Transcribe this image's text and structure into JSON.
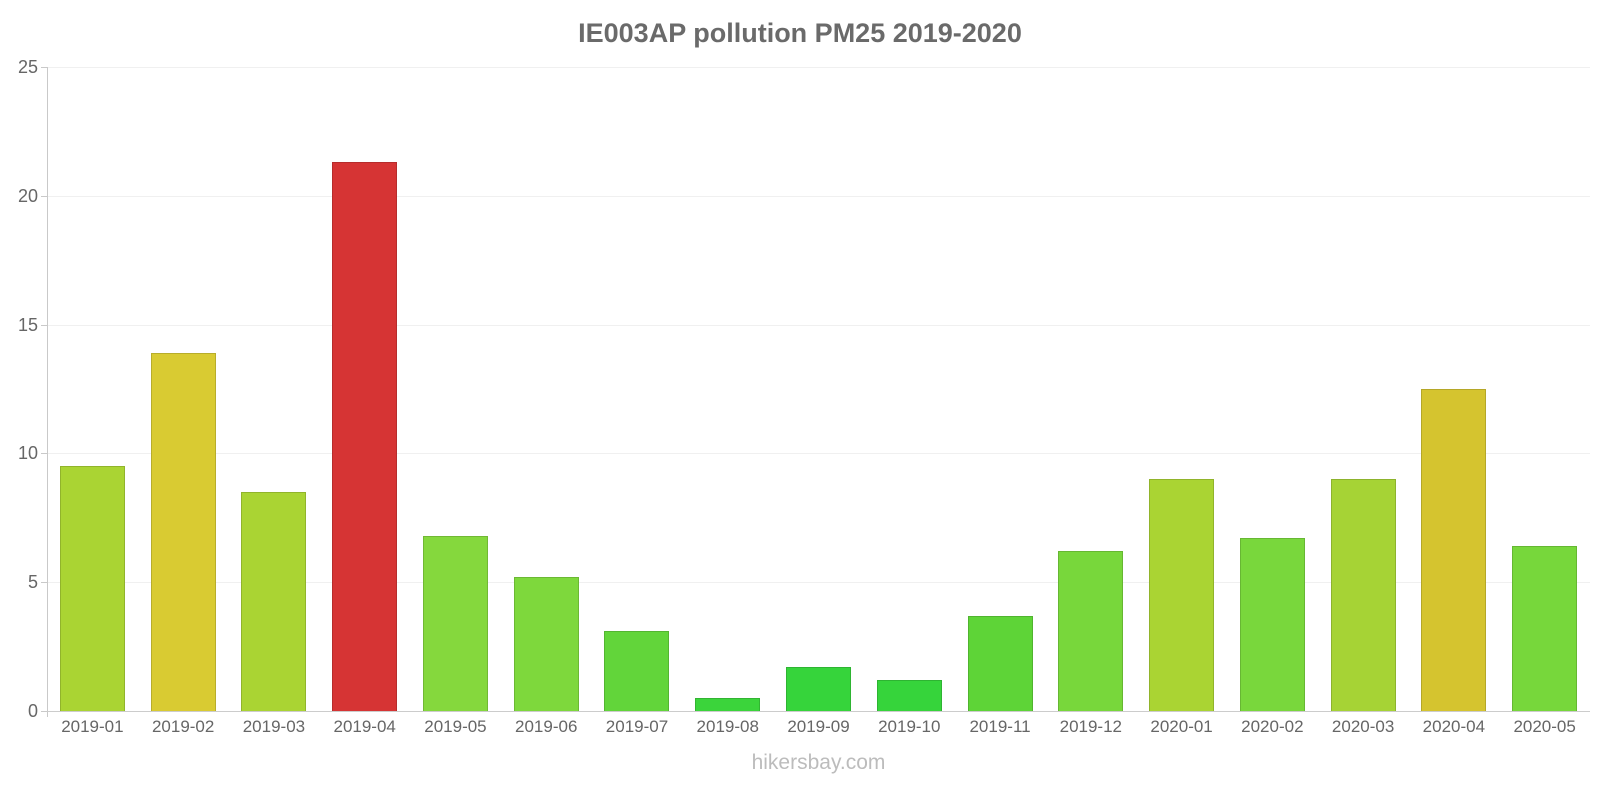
{
  "title": "IE003AP pollution PM25 2019-2020",
  "footer": "hikersbay.com",
  "theme": {
    "background": "#ffffff",
    "title_color": "#6a6a6a",
    "axis_text_color": "#666666",
    "grid_color": "#f0f0f0",
    "baseline_color": "#cccccc",
    "axis_line_color": "#c9c9c9",
    "watermark_color": "#bcbcbc"
  },
  "chart_data": {
    "type": "bar",
    "title": "IE003AP pollution PM25 2019-2020",
    "xlabel": "",
    "ylabel": "",
    "ylim": [
      0,
      25
    ],
    "yticks": [
      0,
      5,
      10,
      15,
      20,
      25
    ],
    "grid": true,
    "legend": false,
    "categories": [
      "2019-01",
      "2019-02",
      "2019-03",
      "2019-04",
      "2019-05",
      "2019-06",
      "2019-07",
      "2019-08",
      "2019-09",
      "2019-10",
      "2019-11",
      "2019-12",
      "2020-01",
      "2020-02",
      "2020-03",
      "2020-04",
      "2020-05"
    ],
    "values": [
      9.5,
      13.9,
      8.5,
      21.3,
      6.8,
      5.2,
      3.1,
      0.5,
      1.7,
      1.2,
      3.7,
      6.2,
      9.0,
      6.7,
      9.0,
      12.5,
      6.4
    ],
    "bar_colors": [
      "#aad433",
      "#d9cb32",
      "#aad433",
      "#d63434",
      "#85d83d",
      "#7ed83c",
      "#62d53a",
      "#3bd43b",
      "#36d43b",
      "#36d43b",
      "#5ed437",
      "#78d73b",
      "#aad433",
      "#79d73c",
      "#a6d335",
      "#d5c42f",
      "#77d73b"
    ]
  }
}
